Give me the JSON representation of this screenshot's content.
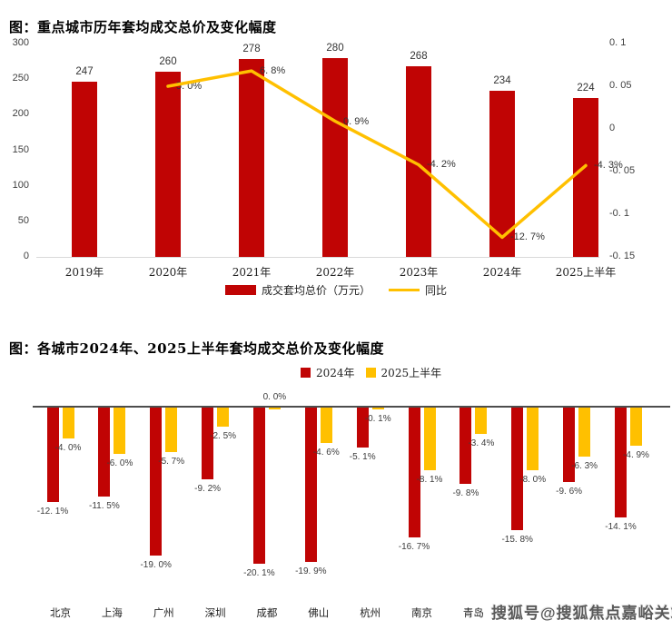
{
  "page": {
    "watermark": "搜狐号@搜狐焦点嘉峪关站"
  },
  "colors": {
    "bar_red": "#C00404",
    "line_yellow": "#FFC000",
    "axis_dark": "#4d4d4d",
    "axis_light": "#d9d9d9"
  },
  "chart_data": [
    {
      "type": "bar",
      "title": "图：重点城市历年套均成交总价及变化幅度",
      "categories": [
        "2019年",
        "2020年",
        "2021年",
        "2022年",
        "2023年",
        "2024年",
        "2025上半年"
      ],
      "series": [
        {
          "name": "成交套均总价（万元）",
          "type": "bar",
          "color": "#C00404",
          "values": [
            247,
            260,
            278,
            280,
            268,
            234,
            224
          ],
          "labels": [
            "247",
            "260",
            "278",
            "280",
            "268",
            "234",
            "224"
          ]
        },
        {
          "name": "同比",
          "type": "line",
          "color": "#FFC000",
          "values": [
            null,
            0.05,
            0.068,
            0.009,
            -0.042,
            -0.127,
            -0.043
          ],
          "labels": [
            "",
            "5. 0%",
            "6. 8%",
            "0. 9%",
            "-4. 2%",
            "-12. 7%",
            "-4. 3%"
          ]
        }
      ],
      "left_axis": {
        "ticks": [
          "300",
          "250",
          "200",
          "150",
          "100",
          "50",
          "0"
        ],
        "range": [
          0,
          300
        ]
      },
      "right_axis": {
        "ticks": [
          "0. 1",
          "0. 05",
          "0",
          "-0. 05",
          "-0. 1",
          "-0. 15"
        ],
        "range": [
          -0.15,
          0.1
        ]
      },
      "legend_position": "bottom",
      "grid": false
    },
    {
      "type": "bar",
      "title": "图：各城市2024年、2025上半年套均成交总价及变化幅度",
      "categories": [
        "北京",
        "上海",
        "广州",
        "深圳",
        "成都",
        "佛山",
        "杭州",
        "南京",
        "青岛",
        "",
        "",
        ""
      ],
      "series": [
        {
          "name": "2024年",
          "color": "#C00404",
          "values": [
            -12.1,
            -11.5,
            -19.0,
            -9.2,
            -20.1,
            -19.9,
            -5.1,
            -16.7,
            -9.8,
            -15.8,
            -9.6,
            -14.1
          ],
          "labels": [
            "-12. 1%",
            "-11. 5%",
            "-19. 0%",
            "-9. 2%",
            "-20. 1%",
            "-19. 9%",
            "-5. 1%",
            "-16. 7%",
            "-9. 8%",
            "-15. 8%",
            "-9. 6%",
            "-14. 1%"
          ]
        },
        {
          "name": "2025上半年",
          "color": "#FFC000",
          "values": [
            -4.0,
            -6.0,
            -5.7,
            -2.5,
            0.0,
            -4.6,
            -0.1,
            -8.1,
            -3.4,
            -8.0,
            -6.3,
            -4.9
          ],
          "labels": [
            "-4. 0%",
            "-6. 0%",
            "-5. 7%",
            "-2. 5%",
            "0. 0%",
            "-4. 6%",
            "-0. 1%",
            "-8. 1%",
            "-3. 4%",
            "-8. 0%",
            "-6. 3%",
            "-4. 9%"
          ]
        }
      ],
      "value_unit": "%",
      "legend_position": "top",
      "grid": false
    }
  ]
}
